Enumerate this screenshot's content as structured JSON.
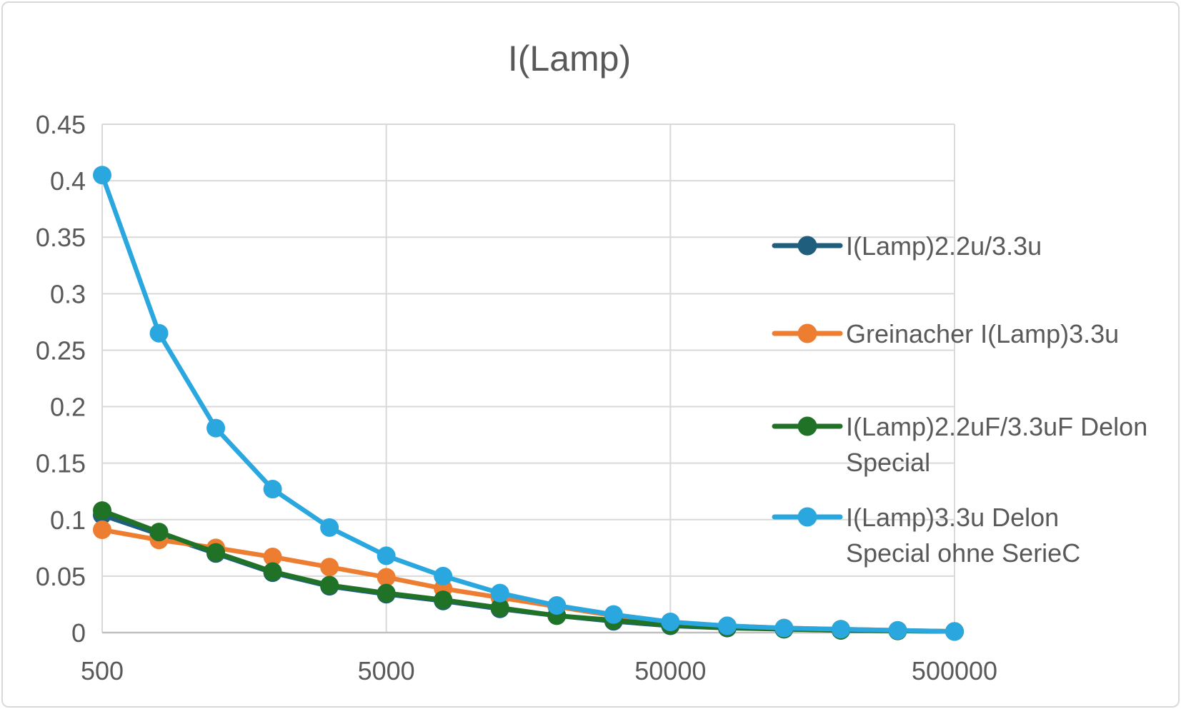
{
  "frame": {
    "background": "#FFFFFF",
    "border_color": "#D9D9D9"
  },
  "chart_data": {
    "type": "line",
    "title": "I(Lamp)",
    "title_color": "#595959",
    "text_color": "#595959",
    "gridline_color": "#D9D9D9",
    "axis_line_color": "#BFBFBF",
    "grid": true,
    "x_scale": "logarithmic-categories",
    "legend_position": "right-overlay",
    "x": [
      500,
      800,
      1250,
      2000,
      3150,
      5000,
      8000,
      12500,
      20000,
      31500,
      50000,
      80000,
      125000,
      200000,
      315000,
      500000
    ],
    "x_tick_values": [
      500,
      5000,
      50000,
      500000
    ],
    "x_tick_labels": [
      "500",
      "5000",
      "50000",
      "500000"
    ],
    "ylim": [
      0,
      0.45
    ],
    "y_ticks": [
      0,
      0.05,
      0.1,
      0.15,
      0.2,
      0.25,
      0.3,
      0.35,
      0.4,
      0.45
    ],
    "y_tick_labels": [
      "0",
      "0.05",
      "0.1",
      "0.15",
      "0.2",
      "0.25",
      "0.3",
      "0.35",
      "0.4",
      "0.45"
    ],
    "series": [
      {
        "name": "I(Lamp)2.2u/3.3u",
        "color": "#1F5F7D",
        "legend_lines": [
          "I(Lamp)2.2u/3.3u"
        ],
        "values": [
          0.104,
          0.087,
          0.07,
          0.053,
          0.041,
          0.034,
          0.028,
          0.021,
          0.015,
          0.01,
          0.006,
          0.004,
          0.003,
          0.002,
          0.0015,
          0.001
        ]
      },
      {
        "name": "Greinacher I(Lamp)3.3u",
        "color": "#ED7D31",
        "legend_lines": [
          "Greinacher I(Lamp)3.3u"
        ],
        "values": [
          0.091,
          0.082,
          0.075,
          0.067,
          0.058,
          0.049,
          0.039,
          0.031,
          0.023,
          0.015,
          0.009,
          0.006,
          0.004,
          0.003,
          0.002,
          0.001
        ]
      },
      {
        "name": "I(Lamp)2.2uF/3.3uF Delon Special",
        "color": "#1F7226",
        "legend_lines": [
          "I(Lamp)2.2uF/3.3uF Delon",
          "Special"
        ],
        "values": [
          0.108,
          0.089,
          0.071,
          0.054,
          0.042,
          0.035,
          0.029,
          0.022,
          0.015,
          0.011,
          0.0065,
          0.0045,
          0.003,
          0.002,
          0.0015,
          0.001
        ]
      },
      {
        "name": "I(Lamp)3.3u Delon Special ohne SerieC",
        "color": "#2AA7DE",
        "legend_lines": [
          "I(Lamp)3.3u Delon",
          "Special ohne SerieC"
        ],
        "values": [
          0.405,
          0.265,
          0.181,
          0.127,
          0.093,
          0.068,
          0.05,
          0.035,
          0.024,
          0.016,
          0.0095,
          0.006,
          0.004,
          0.003,
          0.002,
          0.001
        ]
      }
    ]
  }
}
